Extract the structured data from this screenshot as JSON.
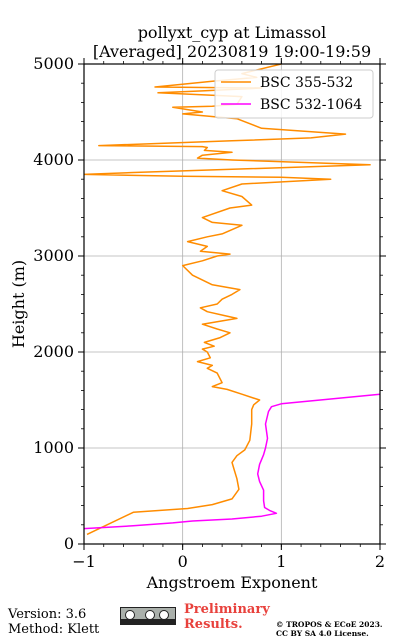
{
  "chart_data": {
    "type": "line",
    "title_line1": "pollyxt_cyp at Limassol",
    "title_line2": "[Averaged] 20230819 19:00-19:59",
    "xlabel": "Angstroem Exponent",
    "ylabel": "Height (m)",
    "xlim": [
      -1,
      2
    ],
    "ylim": [
      0,
      5000
    ],
    "xticks": [
      "−1",
      "0",
      "1",
      "2"
    ],
    "xtick_values": [
      -1,
      0,
      1,
      2
    ],
    "yticks": [
      "0",
      "1000",
      "2000",
      "3000",
      "4000",
      "5000"
    ],
    "ytick_values": [
      0,
      1000,
      2000,
      3000,
      4000,
      5000
    ],
    "grid": true,
    "legend_position": "top-right",
    "series": [
      {
        "name": "BSC 355-532",
        "color": "#ff8c00",
        "x": [
          -0.97,
          -0.5,
          0.05,
          0.3,
          0.5,
          0.57,
          0.55,
          0.52,
          0.5,
          0.55,
          0.63,
          0.68,
          0.7,
          0.7,
          0.72,
          0.78,
          0.72,
          0.6,
          0.45,
          0.3,
          0.4,
          0.35,
          0.25,
          0.3,
          0.15,
          0.28,
          0.25,
          0.2,
          0.32,
          0.22,
          0.38,
          0.48,
          0.35,
          0.2,
          0.55,
          0.42,
          0.25,
          0.18,
          0.35,
          0.4,
          0.5,
          0.58,
          0.3,
          0.1,
          0.0,
          0.2,
          0.35,
          0.48,
          0.18,
          0.25,
          0.05,
          0.25,
          0.4,
          0.6,
          0.3,
          0.2,
          0.48,
          0.7,
          0.6,
          0.4,
          0.6,
          1.5,
          1.0,
          0.0,
          -1.0,
          -0.5,
          1.9,
          0.5,
          0.15,
          0.2,
          0.5,
          0.22,
          0.25,
          0.2,
          -0.85,
          0.5,
          1.3,
          1.65,
          0.8,
          0.55,
          0.0,
          0.2,
          -0.1,
          0.3,
          0.55,
          0.6,
          -0.25,
          0.2,
          0.8,
          -0.28,
          0.3,
          0.75,
          0.6,
          1.0
        ],
        "y": [
          100,
          330,
          370,
          410,
          470,
          570,
          680,
          780,
          850,
          920,
          980,
          1080,
          1250,
          1400,
          1450,
          1500,
          1520,
          1560,
          1610,
          1640,
          1680,
          1780,
          1830,
          1860,
          1900,
          1940,
          2000,
          2030,
          2060,
          2100,
          2150,
          2200,
          2240,
          2290,
          2350,
          2380,
          2420,
          2460,
          2500,
          2550,
          2600,
          2650,
          2700,
          2800,
          2900,
          2950,
          3000,
          3020,
          3050,
          3100,
          3150,
          3200,
          3230,
          3320,
          3350,
          3400,
          3500,
          3530,
          3620,
          3680,
          3750,
          3800,
          3820,
          3830,
          3850,
          3870,
          3950,
          4000,
          4020,
          4050,
          4080,
          4100,
          4130,
          4140,
          4150,
          4200,
          4230,
          4270,
          4330,
          4430,
          4480,
          4500,
          4550,
          4560,
          4580,
          4660,
          4700,
          4720,
          4750,
          4760,
          4820,
          4860,
          4900,
          5000
        ]
      },
      {
        "name": "BSC 532-1064",
        "color": "#ff00ff",
        "x": [
          -1.0,
          -0.5,
          -0.1,
          0.1,
          0.5,
          0.8,
          0.95,
          0.88,
          0.83,
          0.82,
          0.82,
          0.78,
          0.76,
          0.78,
          0.82,
          0.84,
          0.86,
          0.84,
          0.87,
          0.9,
          1.0,
          1.5,
          2.0
        ],
        "y": [
          160,
          190,
          220,
          240,
          260,
          290,
          320,
          350,
          380,
          450,
          560,
          650,
          730,
          830,
          930,
          1000,
          1100,
          1250,
          1380,
          1430,
          1460,
          1510,
          1560
        ]
      }
    ],
    "legend": [
      "BSC 355-532",
      "BSC 532-1064"
    ]
  },
  "footer": {
    "version": "Version: 3.6",
    "method": "Method: Klett",
    "preliminary_line1": "Preliminary",
    "preliminary_line2": "Results.",
    "copyright_line1": "© TROPOS & ECoE 2023.",
    "copyright_line2": "CC BY SA 4.0 License."
  },
  "badge": {
    "icon": "cc-by-sa-icon"
  }
}
